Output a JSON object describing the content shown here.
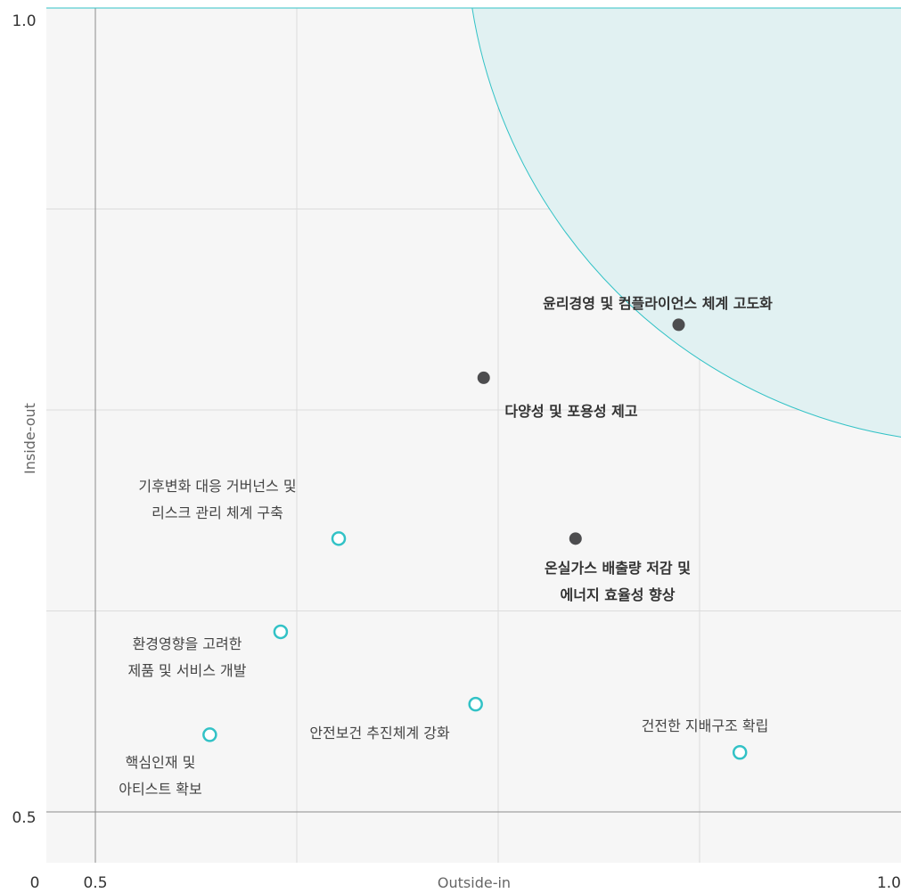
{
  "chart_data": {
    "type": "scatter",
    "title": "",
    "xlabel": "Outside-in",
    "ylabel": "Inside-out",
    "xlim": [
      0.5,
      1.0
    ],
    "ylim": [
      0.5,
      1.0
    ],
    "ytick_labels": [
      "1.0",
      "0.5"
    ],
    "xtick_labels": [
      "0",
      "0.5",
      "1.0"
    ],
    "grid": true,
    "colors": {
      "plot_bg": "#f6f6f6",
      "highlight_fill": "#e1f1f2",
      "highlight_stroke": "#32c2c6",
      "open_marker": "#32c2c6",
      "filled_marker": "#4d4d4f",
      "grid": "#dcdcdc",
      "axis": "#8c8c8c"
    },
    "highlight_region": {
      "center": [
        1.05,
        1.05
      ],
      "radius": 0.32
    },
    "points": [
      {
        "name": [
          "윤리경영 및 컴플라이언스 체계 고도화"
        ],
        "x": 0.862,
        "y": 0.803,
        "style": "filled"
      },
      {
        "name": [
          "다양성 및 포용성 제고"
        ],
        "x": 0.741,
        "y": 0.77,
        "style": "filled"
      },
      {
        "name": [
          "온실가스 배출량 저감 및",
          "에너지 효율성 향상"
        ],
        "x": 0.798,
        "y": 0.67,
        "style": "filled"
      },
      {
        "name": [
          "기후변화 대응 거버넌스 및",
          "리스크 관리 체계 구축"
        ],
        "x": 0.651,
        "y": 0.67,
        "style": "open"
      },
      {
        "name": [
          "환경영향을 고려한",
          "제품 및 서비스 개발"
        ],
        "x": 0.615,
        "y": 0.612,
        "style": "open"
      },
      {
        "name": [
          "안전보건 추진체계 강화"
        ],
        "x": 0.736,
        "y": 0.567,
        "style": "open"
      },
      {
        "name": [
          "핵심인재 및",
          "아티스트 확보"
        ],
        "x": 0.571,
        "y": 0.548,
        "style": "open"
      },
      {
        "name": [
          "건전한 지배구조 확립"
        ],
        "x": 0.9,
        "y": 0.537,
        "style": "open"
      }
    ]
  }
}
